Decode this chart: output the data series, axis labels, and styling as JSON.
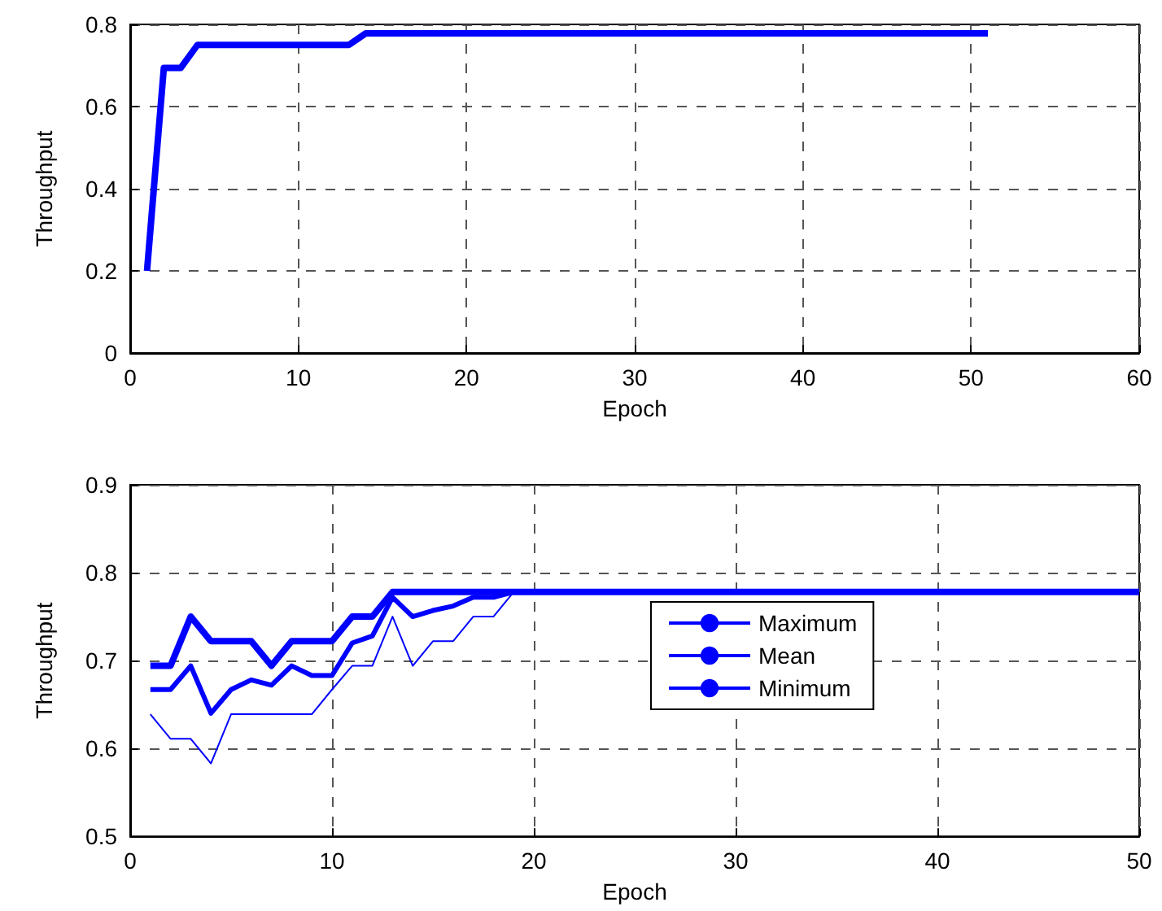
{
  "chart_data": [
    {
      "type": "line",
      "xlabel": "Epoch",
      "ylabel": "Throughput",
      "xlim": [
        0,
        60
      ],
      "xticks": [
        0,
        10,
        20,
        30,
        40,
        50,
        60
      ],
      "ylim": [
        0,
        0.8
      ],
      "yticks": [
        0,
        0.2,
        0.4,
        0.6,
        0.8
      ],
      "grid": true,
      "legend": false,
      "marker": "none",
      "line_style": "solid",
      "series": [
        {
          "color": "#0000ff",
          "x": [
            1,
            2,
            3,
            4,
            5,
            6,
            7,
            8,
            9,
            10,
            11,
            12,
            13,
            14,
            15,
            16,
            17,
            18,
            19,
            20,
            21,
            22,
            23,
            24,
            25,
            26,
            27,
            28,
            29,
            30,
            31,
            32,
            33,
            34,
            35,
            36,
            37,
            38,
            39,
            40,
            41,
            42,
            43,
            44,
            45,
            46,
            47,
            48,
            49,
            50,
            51
          ],
          "values": [
            0.2,
            0.694,
            0.694,
            0.75,
            0.75,
            0.75,
            0.75,
            0.75,
            0.75,
            0.75,
            0.75,
            0.75,
            0.75,
            0.778,
            0.778,
            0.778,
            0.778,
            0.778,
            0.778,
            0.778,
            0.778,
            0.778,
            0.778,
            0.778,
            0.778,
            0.778,
            0.778,
            0.778,
            0.778,
            0.778,
            0.778,
            0.778,
            0.778,
            0.778,
            0.778,
            0.778,
            0.778,
            0.778,
            0.778,
            0.778,
            0.778,
            0.778,
            0.778,
            0.778,
            0.778,
            0.778,
            0.778,
            0.778,
            0.778,
            0.778,
            0.778
          ]
        }
      ]
    },
    {
      "type": "line",
      "xlabel": "Epoch",
      "ylabel": "Throughput",
      "xlim": [
        0,
        50
      ],
      "xticks": [
        0,
        10,
        20,
        30,
        40,
        50
      ],
      "ylim": [
        0.5,
        0.9
      ],
      "yticks": [
        0.5,
        0.6,
        0.7,
        0.8,
        0.9
      ],
      "grid": true,
      "legend": "right",
      "marker": "none",
      "line_style": "solid",
      "series": [
        {
          "name": "Maximum",
          "color": "#0000ff",
          "x": [
            1,
            2,
            3,
            4,
            5,
            6,
            7,
            8,
            9,
            10,
            11,
            12,
            13,
            14,
            15,
            16,
            17,
            18,
            19,
            20,
            21,
            22,
            23,
            24,
            25,
            26,
            27,
            28,
            29,
            30,
            31,
            32,
            33,
            34,
            35,
            36,
            37,
            38,
            39,
            40,
            41,
            42,
            43,
            44,
            45,
            46,
            47,
            48,
            49,
            50
          ],
          "values": [
            0.694,
            0.694,
            0.75,
            0.722,
            0.722,
            0.722,
            0.694,
            0.722,
            0.722,
            0.722,
            0.75,
            0.75,
            0.778,
            0.778,
            0.778,
            0.778,
            0.778,
            0.778,
            0.778,
            0.778,
            0.778,
            0.778,
            0.778,
            0.778,
            0.778,
            0.778,
            0.778,
            0.778,
            0.778,
            0.778,
            0.778,
            0.778,
            0.778,
            0.778,
            0.778,
            0.778,
            0.778,
            0.778,
            0.778,
            0.778,
            0.778,
            0.778,
            0.778,
            0.778,
            0.778,
            0.778,
            0.778,
            0.778,
            0.778,
            0.778
          ]
        },
        {
          "name": "Mean",
          "color": "#0000ff",
          "x": [
            1,
            2,
            3,
            4,
            5,
            6,
            7,
            8,
            9,
            10,
            11,
            12,
            13,
            14,
            15,
            16,
            17,
            18,
            19,
            20,
            21,
            22,
            23,
            24,
            25,
            26,
            27,
            28,
            29,
            30,
            31,
            32,
            33,
            34,
            35,
            36,
            37,
            38,
            39,
            40,
            41,
            42,
            43,
            44,
            45,
            46,
            47,
            48,
            49,
            50
          ],
          "values": [
            0.667,
            0.667,
            0.694,
            0.64,
            0.667,
            0.678,
            0.672,
            0.694,
            0.683,
            0.683,
            0.72,
            0.728,
            0.772,
            0.75,
            0.757,
            0.762,
            0.772,
            0.772,
            0.778,
            0.778,
            0.778,
            0.778,
            0.778,
            0.778,
            0.778,
            0.778,
            0.778,
            0.778,
            0.778,
            0.778,
            0.778,
            0.778,
            0.778,
            0.778,
            0.778,
            0.778,
            0.778,
            0.778,
            0.778,
            0.778,
            0.778,
            0.778,
            0.778,
            0.778,
            0.778,
            0.778,
            0.778,
            0.778,
            0.778,
            0.778
          ]
        },
        {
          "name": "Minimum",
          "color": "#0000ff",
          "x": [
            1,
            2,
            3,
            4,
            5,
            6,
            7,
            8,
            9,
            10,
            11,
            12,
            13,
            14,
            15,
            16,
            17,
            18,
            19,
            20,
            21,
            22,
            23,
            24,
            25,
            26,
            27,
            28,
            29,
            30,
            31,
            32,
            33,
            34,
            35,
            36,
            37,
            38,
            39,
            40,
            41,
            42,
            43,
            44,
            45,
            46,
            47,
            48,
            49,
            50
          ],
          "values": [
            0.639,
            0.611,
            0.611,
            0.583,
            0.639,
            0.639,
            0.639,
            0.639,
            0.639,
            0.667,
            0.694,
            0.694,
            0.75,
            0.694,
            0.722,
            0.722,
            0.75,
            0.75,
            0.778,
            0.778,
            0.778,
            0.778,
            0.778,
            0.778,
            0.778,
            0.778,
            0.778,
            0.778,
            0.778,
            0.778,
            0.778,
            0.778,
            0.778,
            0.778,
            0.778,
            0.778,
            0.778,
            0.778,
            0.778,
            0.778,
            0.778,
            0.778,
            0.778,
            0.778,
            0.778,
            0.778,
            0.778,
            0.778,
            0.778,
            0.778
          ]
        }
      ]
    }
  ]
}
